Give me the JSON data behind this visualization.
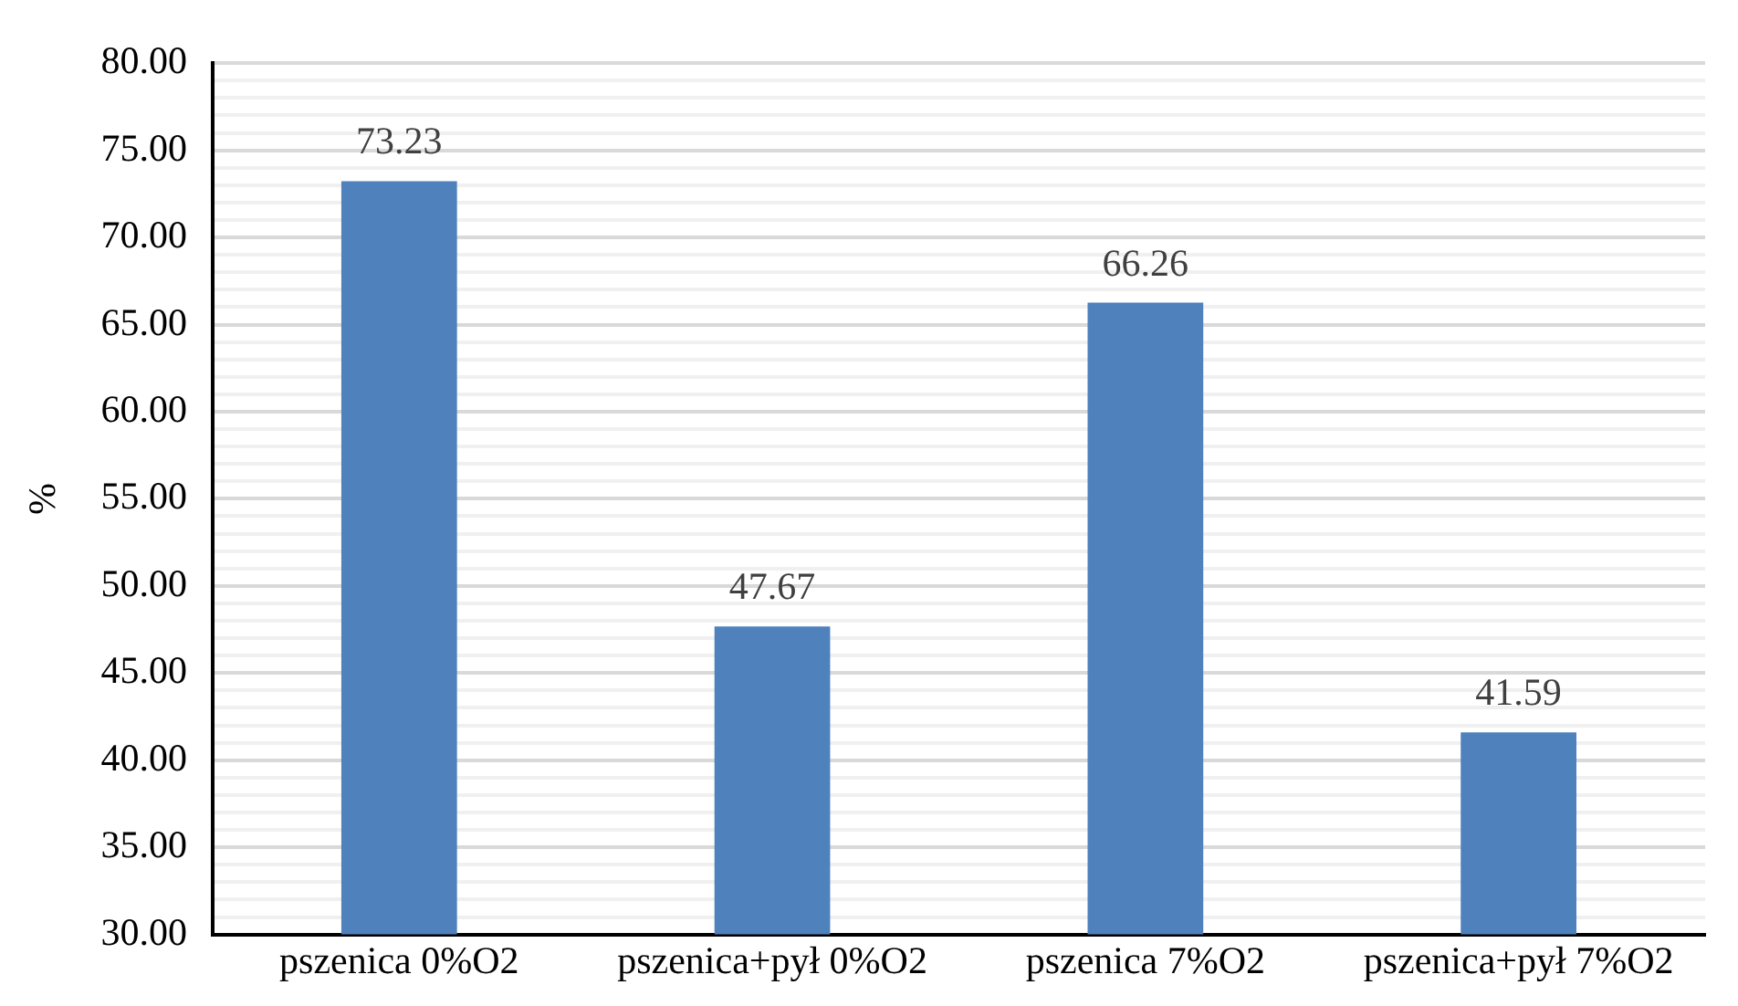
{
  "chart_data": {
    "type": "bar",
    "ylabel": "%",
    "categories": [
      "pszenica 0%O2",
      "pszenica+pył 0%O2",
      "pszenica 7%O2",
      "pszenica+pył 7%O2"
    ],
    "values": [
      73.23,
      47.67,
      66.26,
      41.59
    ],
    "color": "#4f81bd",
    "ylim": [
      30,
      80
    ],
    "yticks": [
      {
        "value": 30,
        "label": "30.00"
      },
      {
        "value": 31,
        "label": null
      },
      {
        "value": 32,
        "label": null
      },
      {
        "value": 33,
        "label": null
      },
      {
        "value": 34,
        "label": null
      },
      {
        "value": 35,
        "label": "35.00"
      },
      {
        "value": 36,
        "label": null
      },
      {
        "value": 37,
        "label": null
      },
      {
        "value": 38,
        "label": null
      },
      {
        "value": 39,
        "label": null
      },
      {
        "value": 40,
        "label": "40.00"
      },
      {
        "value": 41,
        "label": null
      },
      {
        "value": 42,
        "label": null
      },
      {
        "value": 43,
        "label": null
      },
      {
        "value": 44,
        "label": null
      },
      {
        "value": 45,
        "label": "45.00"
      },
      {
        "value": 46,
        "label": null
      },
      {
        "value": 47,
        "label": null
      },
      {
        "value": 48,
        "label": null
      },
      {
        "value": 49,
        "label": null
      },
      {
        "value": 50,
        "label": "50.00"
      },
      {
        "value": 51,
        "label": null
      },
      {
        "value": 52,
        "label": null
      },
      {
        "value": 53,
        "label": null
      },
      {
        "value": 54,
        "label": null
      },
      {
        "value": 55,
        "label": "55.00"
      },
      {
        "value": 56,
        "label": null
      },
      {
        "value": 57,
        "label": null
      },
      {
        "value": 58,
        "label": null
      },
      {
        "value": 59,
        "label": null
      },
      {
        "value": 60,
        "label": "60.00"
      },
      {
        "value": 61,
        "label": null
      },
      {
        "value": 62,
        "label": null
      },
      {
        "value": 63,
        "label": null
      },
      {
        "value": 64,
        "label": null
      },
      {
        "value": 65,
        "label": "65.00"
      },
      {
        "value": 66,
        "label": null
      },
      {
        "value": 67,
        "label": null
      },
      {
        "value": 68,
        "label": null
      },
      {
        "value": 69,
        "label": null
      },
      {
        "value": 70,
        "label": "70.00"
      },
      {
        "value": 71,
        "label": null
      },
      {
        "value": 72,
        "label": null
      },
      {
        "value": 73,
        "label": null
      },
      {
        "value": 74,
        "label": null
      },
      {
        "value": 75,
        "label": "75.00"
      },
      {
        "value": 76,
        "label": null
      },
      {
        "value": 77,
        "label": null
      },
      {
        "value": 78,
        "label": null
      },
      {
        "value": 79,
        "label": null
      },
      {
        "value": 80,
        "label": "80.00"
      }
    ],
    "grid": "y",
    "data_labels": true
  }
}
